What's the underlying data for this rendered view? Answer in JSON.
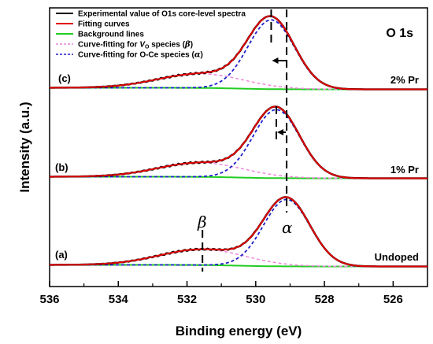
{
  "chart_data": {
    "type": "line",
    "title": "O 1s",
    "xlabel": "Binding energy (eV)",
    "ylabel": "Intensity (a.u.)",
    "xlim": [
      536,
      525
    ],
    "x_ticks": [
      "536",
      "534",
      "532",
      "530",
      "528",
      "526"
    ],
    "x_reversed": true,
    "y_ticks_shown": false,
    "legend": [
      {
        "label": "Experimental value of O1s core-level spectra",
        "color": "#000000",
        "style": "solid"
      },
      {
        "label": "Fitting curves",
        "color": "#e00000",
        "style": "solid"
      },
      {
        "label": "Background lines",
        "color": "#22cc22",
        "style": "solid"
      },
      {
        "label_pre": "Curve-fitting for ",
        "label_italic": "V",
        "label_sub": "O",
        "label_post": " species (",
        "label_greek": "β",
        "label_end": ")",
        "color": "#ee88dd",
        "style": "dashed"
      },
      {
        "label_pre": "Curve-fitting for O-Ce species (",
        "label_greek": "α",
        "label_end": ")",
        "color": "#2020cc",
        "style": "dashed"
      }
    ],
    "legend_position": "top-left",
    "panels": [
      {
        "tag": "(a)",
        "label": "Undoped",
        "alpha_peak": 529.1,
        "beta_peak": 531.55
      },
      {
        "tag": "(b)",
        "label": "1% Pr",
        "alpha_peak": 529.4,
        "beta_peak": 531.6
      },
      {
        "tag": "(c)",
        "label": "2% Pr",
        "alpha_peak": 529.55,
        "beta_peak": 531.6
      }
    ],
    "annotations": {
      "alpha_symbol": "α",
      "beta_symbol": "β"
    },
    "colors": {
      "experimental": "#000000",
      "fit": "#e00000",
      "background": "#22cc22",
      "beta": "#ee88dd",
      "alpha": "#2020cc"
    }
  }
}
